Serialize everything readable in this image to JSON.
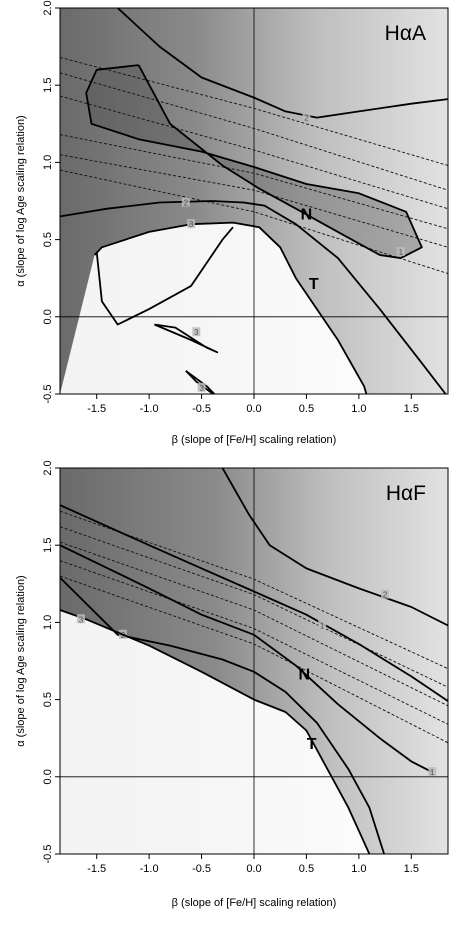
{
  "chart_data": [
    {
      "type": "contour",
      "title": "HαA",
      "xlabel": "β (slope of [Fe/H] scaling relation)",
      "ylabel": "α (slope of log Age scaling relation)",
      "xlim": [
        -1.85,
        1.85
      ],
      "ylim": [
        -0.5,
        2.0
      ],
      "xticks": [
        "-1.5",
        "-1.0",
        "-0.5",
        "0.0",
        "0.5",
        "1.0",
        "1.5"
      ],
      "yticks": [
        "-0.5",
        "0.0",
        "0.5",
        "1.0",
        "1.5",
        "2.0"
      ],
      "reference_lines": {
        "x": 0.0,
        "y": 0.0
      },
      "region_labels": [
        {
          "text": "N",
          "x": 0.5,
          "y": 0.67
        },
        {
          "text": "T",
          "x": 0.57,
          "y": 0.22
        }
      ],
      "solid_contours": [
        {
          "label": "2",
          "label_at": [
            0.5,
            1.29
          ],
          "points": [
            [
              -1.3,
              2.0
            ],
            [
              -0.9,
              1.75
            ],
            [
              -0.5,
              1.55
            ],
            [
              0.0,
              1.42
            ],
            [
              0.3,
              1.33
            ],
            [
              0.6,
              1.29
            ],
            [
              1.0,
              1.33
            ],
            [
              1.5,
              1.38
            ],
            [
              1.85,
              1.41
            ]
          ]
        },
        {
          "label": "1",
          "label_at": [
            1.4,
            0.42
          ],
          "points": [
            [
              -1.1,
              1.63
            ],
            [
              -1.5,
              1.6
            ],
            [
              -1.6,
              1.45
            ],
            [
              -1.55,
              1.25
            ],
            [
              -1.1,
              1.15
            ],
            [
              -0.5,
              1.07
            ],
            [
              0.0,
              0.97
            ],
            [
              0.5,
              0.86
            ],
            [
              1.0,
              0.8
            ],
            [
              1.45,
              0.68
            ],
            [
              1.6,
              0.45
            ],
            [
              1.4,
              0.38
            ],
            [
              1.2,
              0.4
            ],
            [
              0.8,
              0.55
            ],
            [
              0.4,
              0.7
            ],
            [
              0.05,
              0.83
            ],
            [
              -0.3,
              0.98
            ],
            [
              -0.8,
              1.25
            ],
            [
              -1.1,
              1.63
            ]
          ]
        },
        {
          "label": "2",
          "label_at": [
            -0.65,
            0.74
          ],
          "points": [
            [
              -1.85,
              0.65
            ],
            [
              -1.4,
              0.7
            ],
            [
              -0.9,
              0.74
            ],
            [
              -0.4,
              0.75
            ],
            [
              -0.1,
              0.74
            ],
            [
              0.1,
              0.72
            ],
            [
              0.4,
              0.6
            ],
            [
              0.8,
              0.38
            ],
            [
              1.2,
              0.05
            ],
            [
              1.6,
              -0.3
            ],
            [
              1.85,
              -0.52
            ]
          ]
        },
        {
          "label": "3",
          "label_at": [
            -0.6,
            0.6
          ],
          "points": [
            [
              -1.52,
              0.4
            ],
            [
              -1.45,
              0.45
            ],
            [
              -1.0,
              0.55
            ],
            [
              -0.6,
              0.6
            ],
            [
              -0.2,
              0.61
            ],
            [
              0.05,
              0.58
            ],
            [
              0.25,
              0.45
            ],
            [
              0.4,
              0.25
            ],
            [
              0.6,
              0.05
            ],
            [
              0.8,
              -0.15
            ],
            [
              1.05,
              -0.45
            ],
            [
              1.08,
              -0.52
            ]
          ]
        },
        {
          "label": "",
          "label_at": [
            0,
            0
          ],
          "points": [
            [
              -1.5,
              0.42
            ],
            [
              -1.45,
              0.1
            ],
            [
              -1.3,
              -0.05
            ],
            [
              -1.0,
              0.05
            ],
            [
              -0.6,
              0.2
            ],
            [
              -0.3,
              0.5
            ],
            [
              -0.2,
              0.58
            ]
          ]
        },
        {
          "label": "3",
          "label_at": [
            -0.55,
            -0.1
          ],
          "points": [
            [
              -0.95,
              -0.05
            ],
            [
              -0.6,
              -0.15
            ],
            [
              -0.35,
              -0.23
            ],
            [
              -0.45,
              -0.2
            ],
            [
              -0.75,
              -0.07
            ],
            [
              -0.95,
              -0.05
            ]
          ]
        },
        {
          "label": "3",
          "label_at": [
            -0.5,
            -0.46
          ],
          "points": [
            [
              -0.65,
              -0.35
            ],
            [
              -0.45,
              -0.45
            ],
            [
              -0.35,
              -0.52
            ],
            [
              -0.55,
              -0.42
            ],
            [
              -0.65,
              -0.35
            ]
          ]
        }
      ],
      "dashed_contours": [
        {
          "points": [
            [
              -1.85,
              1.68
            ],
            [
              0.0,
              1.35
            ],
            [
              1.85,
              0.98
            ]
          ]
        },
        {
          "points": [
            [
              -1.85,
              1.58
            ],
            [
              0.0,
              1.22
            ],
            [
              1.85,
              0.82
            ]
          ]
        },
        {
          "points": [
            [
              -1.85,
              1.43
            ],
            [
              0.0,
              1.08
            ],
            [
              1.85,
              0.7
            ]
          ]
        },
        {
          "points": [
            [
              -1.85,
              1.18
            ],
            [
              0.0,
              0.93
            ],
            [
              1.85,
              0.57
            ]
          ]
        },
        {
          "points": [
            [
              -1.85,
              1.05
            ],
            [
              0.0,
              0.82
            ],
            [
              1.85,
              0.45
            ]
          ]
        },
        {
          "points": [
            [
              -1.85,
              0.95
            ],
            [
              0.0,
              0.68
            ],
            [
              1.85,
              0.28
            ]
          ]
        }
      ]
    },
    {
      "type": "contour",
      "title": "HαF",
      "xlabel": "β (slope of [Fe/H] scaling relation)",
      "ylabel": "α (slope of log Age scaling relation)",
      "xlim": [
        -1.85,
        1.85
      ],
      "ylim": [
        -0.5,
        2.0
      ],
      "xticks": [
        "-1.5",
        "-1.0",
        "-0.5",
        "0.0",
        "0.5",
        "1.0",
        "1.5"
      ],
      "yticks": [
        "-0.5",
        "0.0",
        "0.5",
        "1.0",
        "1.5",
        "2.0"
      ],
      "reference_lines": {
        "x": 0.0,
        "y": 0.0
      },
      "region_labels": [
        {
          "text": "N",
          "x": 0.48,
          "y": 0.67
        },
        {
          "text": "T",
          "x": 0.55,
          "y": 0.22
        }
      ],
      "solid_contours": [
        {
          "label": "2",
          "label_at": [
            1.25,
            1.18
          ],
          "points": [
            [
              -0.3,
              2.0
            ],
            [
              -0.05,
              1.7
            ],
            [
              0.15,
              1.5
            ],
            [
              0.5,
              1.35
            ],
            [
              1.0,
              1.22
            ],
            [
              1.5,
              1.1
            ],
            [
              1.85,
              0.98
            ]
          ]
        },
        {
          "label": "1",
          "label_at": [
            0.65,
            0.98
          ],
          "points": [
            [
              -1.85,
              1.76
            ],
            [
              -1.0,
              1.5
            ],
            [
              -0.5,
              1.35
            ],
            [
              0.0,
              1.2
            ],
            [
              0.5,
              1.05
            ],
            [
              1.0,
              0.86
            ],
            [
              1.5,
              0.65
            ],
            [
              1.85,
              0.49
            ]
          ]
        },
        {
          "label": "1",
          "label_at": [
            1.7,
            0.03
          ],
          "points": [
            [
              -1.85,
              1.5
            ],
            [
              -1.0,
              1.22
            ],
            [
              -0.5,
              1.05
            ],
            [
              0.0,
              0.92
            ],
            [
              0.4,
              0.72
            ],
            [
              0.8,
              0.47
            ],
            [
              1.2,
              0.25
            ],
            [
              1.5,
              0.1
            ],
            [
              1.7,
              0.03
            ]
          ]
        },
        {
          "label": "2",
          "label_at": [
            -1.25,
            0.92
          ],
          "points": [
            [
              -1.85,
              1.29
            ],
            [
              -1.3,
              0.92
            ],
            [
              -0.8,
              0.85
            ],
            [
              -0.3,
              0.76
            ],
            [
              0.0,
              0.68
            ],
            [
              0.3,
              0.55
            ],
            [
              0.6,
              0.35
            ],
            [
              0.9,
              0.05
            ],
            [
              1.1,
              -0.2
            ],
            [
              1.25,
              -0.52
            ]
          ]
        },
        {
          "label": "3",
          "label_at": [
            -1.65,
            1.02
          ],
          "points": [
            [
              -1.85,
              1.08
            ],
            [
              -1.6,
              1.02
            ],
            [
              -1.0,
              0.85
            ],
            [
              -0.5,
              0.68
            ],
            [
              0.0,
              0.5
            ],
            [
              0.3,
              0.42
            ],
            [
              0.5,
              0.3
            ],
            [
              0.7,
              0.05
            ],
            [
              0.9,
              -0.2
            ],
            [
              1.1,
              -0.5
            ]
          ]
        }
      ],
      "dashed_contours": [
        {
          "points": [
            [
              -1.85,
              1.72
            ],
            [
              0.0,
              1.28
            ],
            [
              1.85,
              0.7
            ]
          ]
        },
        {
          "points": [
            [
              -1.85,
              1.62
            ],
            [
              0.0,
              1.18
            ],
            [
              1.85,
              0.58
            ]
          ]
        },
        {
          "points": [
            [
              -1.85,
              1.52
            ],
            [
              0.0,
              1.08
            ],
            [
              1.85,
              0.46
            ]
          ]
        },
        {
          "points": [
            [
              -1.85,
              1.4
            ],
            [
              0.0,
              0.96
            ],
            [
              1.85,
              0.34
            ]
          ]
        },
        {
          "points": [
            [
              -1.85,
              1.3
            ],
            [
              0.0,
              0.86
            ],
            [
              1.85,
              0.22
            ]
          ]
        }
      ]
    }
  ]
}
